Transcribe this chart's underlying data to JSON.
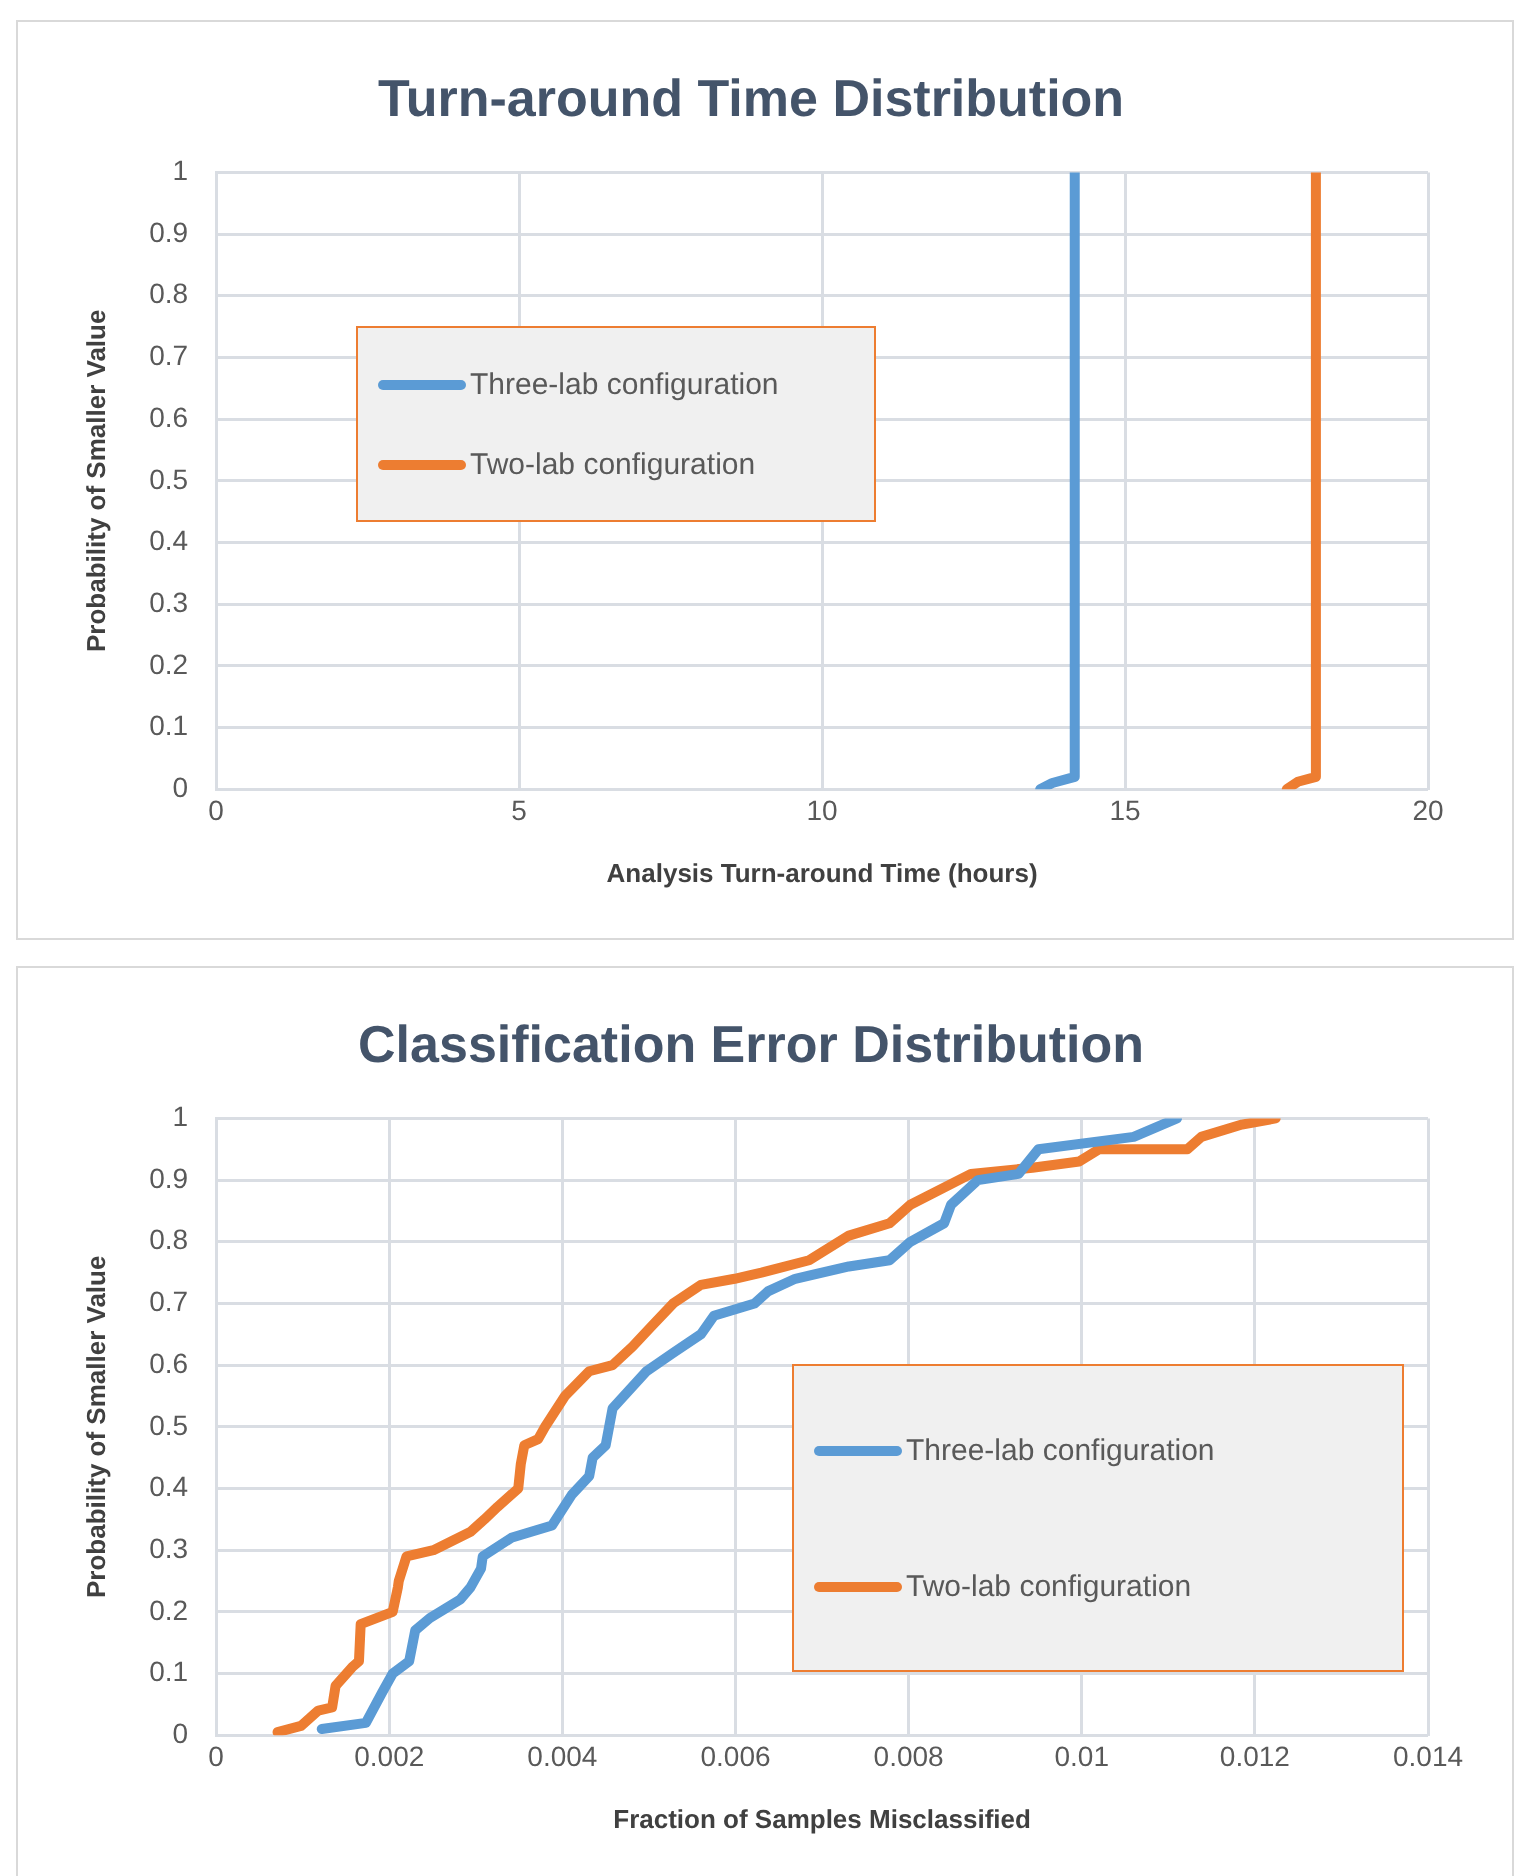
{
  "chart_data": [
    {
      "type": "line",
      "title": "Turn-around Time Distribution",
      "xlabel": "Analysis Turn-around Time (hours)",
      "ylabel": "Probability of Smaller Value",
      "xlim": [
        0,
        20
      ],
      "xticks": [
        0,
        5,
        10,
        15,
        20
      ],
      "ylim": [
        0,
        1
      ],
      "yticks": [
        0,
        0.1,
        0.2,
        0.3,
        0.4,
        0.5,
        0.6,
        0.7,
        0.8,
        0.9,
        1
      ],
      "grid": true,
      "legend": "left",
      "marker": "none",
      "line_style": "solid",
      "series": [
        {
          "name": "Three-lab configuration",
          "color": "#5b9bd5",
          "x": [
            13.6,
            13.8,
            14.17,
            14.17
          ],
          "values": [
            0,
            0.01,
            0.02,
            1
          ]
        },
        {
          "name": "Two-lab configuration",
          "color": "#ed7d31",
          "x": [
            17.67,
            17.85,
            18.15,
            18.15
          ],
          "values": [
            0,
            0.012,
            0.02,
            1
          ]
        }
      ]
    },
    {
      "type": "line",
      "title": "Classification Error Distribution",
      "xlabel": "Fraction of Samples Misclassified",
      "ylabel": "Probability of Smaller Value",
      "xlim": [
        0,
        0.014
      ],
      "xticks": [
        0,
        0.002,
        0.004,
        0.006,
        0.008,
        0.01,
        0.012,
        0.014
      ],
      "ylim": [
        0,
        1
      ],
      "yticks": [
        0,
        0.1,
        0.2,
        0.3,
        0.4,
        0.5,
        0.6,
        0.7,
        0.8,
        0.9,
        1
      ],
      "grid": true,
      "legend": "right",
      "marker": "none",
      "line_style": "solid",
      "series": [
        {
          "name": "Three-lab configuration",
          "color": "#5b9bd5",
          "x": [
            0.00122,
            0.00173,
            0.00192,
            0.00204,
            0.00223,
            0.0023,
            0.00247,
            0.00282,
            0.00294,
            0.00306,
            0.00308,
            0.00341,
            0.00388,
            0.00411,
            0.00431,
            0.00435,
            0.0045,
            0.00458,
            0.00497,
            0.00528,
            0.0056,
            0.00575,
            0.00622,
            0.00638,
            0.00669,
            0.00731,
            0.00778,
            0.00802,
            0.00841,
            0.00849,
            0.0088,
            0.00927,
            0.0095,
            0.0106,
            0.0111
          ],
          "values": [
            0.01,
            0.02,
            0.07,
            0.1,
            0.12,
            0.17,
            0.19,
            0.22,
            0.24,
            0.27,
            0.29,
            0.32,
            0.34,
            0.39,
            0.42,
            0.45,
            0.47,
            0.53,
            0.59,
            0.62,
            0.65,
            0.68,
            0.7,
            0.72,
            0.74,
            0.76,
            0.77,
            0.8,
            0.83,
            0.86,
            0.9,
            0.91,
            0.95,
            0.97,
            1
          ]
        },
        {
          "name": "Two-lab configuration",
          "color": "#ed7d31",
          "x": [
            0.00071,
            0.00098,
            0.00118,
            0.00134,
            0.00138,
            0.00157,
            0.00165,
            0.00167,
            0.00204,
            0.0021,
            0.00211,
            0.0022,
            0.00251,
            0.00294,
            0.0031,
            0.00325,
            0.00349,
            0.00352,
            0.00356,
            0.00372,
            0.0038,
            0.00403,
            0.00431,
            0.00458,
            0.00481,
            0.00501,
            0.00528,
            0.0056,
            0.00599,
            0.0063,
            0.00685,
            0.00731,
            0.00778,
            0.00802,
            0.00872,
            0.00943,
            0.00997,
            0.0102,
            0.01122,
            0.01138,
            0.01185,
            0.01224
          ],
          "values": [
            0.005,
            0.015,
            0.04,
            0.045,
            0.08,
            0.11,
            0.12,
            0.18,
            0.2,
            0.24,
            0.25,
            0.29,
            0.3,
            0.33,
            0.35,
            0.37,
            0.4,
            0.44,
            0.47,
            0.48,
            0.5,
            0.55,
            0.59,
            0.6,
            0.63,
            0.66,
            0.7,
            0.73,
            0.74,
            0.75,
            0.77,
            0.81,
            0.83,
            0.86,
            0.91,
            0.92,
            0.93,
            0.95,
            0.95,
            0.97,
            0.99,
            1
          ]
        }
      ]
    }
  ]
}
